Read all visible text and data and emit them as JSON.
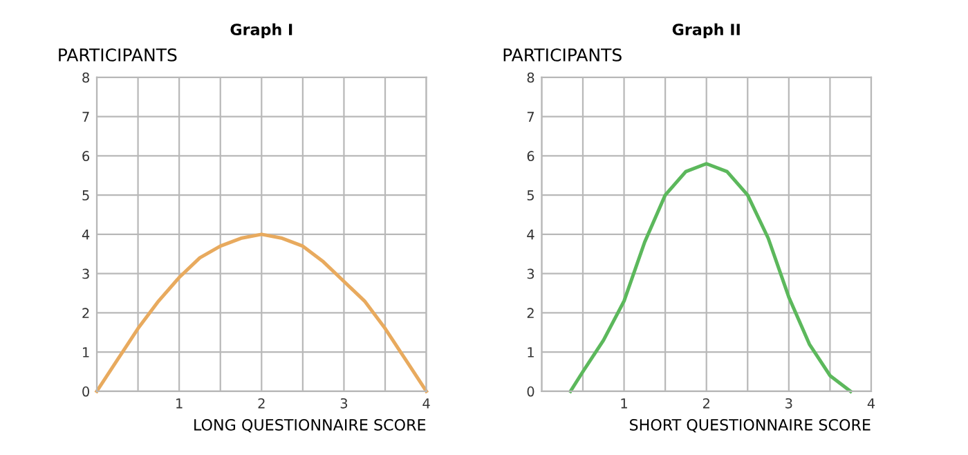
{
  "chart_data": [
    {
      "type": "line",
      "title": "Graph I",
      "xlabel": "LONG QUESTIONNAIRE SCORE",
      "ylabel": "PARTICIPANTS",
      "xlim": [
        0,
        4
      ],
      "ylim": [
        0,
        8
      ],
      "xticks": [
        {
          "value": 0,
          "label": null
        },
        {
          "value": 0.5,
          "label": null
        },
        1,
        {
          "value": 1.5,
          "label": null
        },
        2,
        {
          "value": 2.5,
          "label": null
        },
        3,
        {
          "value": 3.5,
          "label": null
        },
        4
      ],
      "yticks": [
        0,
        1,
        2,
        3,
        4,
        5,
        6,
        7,
        8
      ],
      "grid": true,
      "marker": "none",
      "line_style": "solid",
      "series": [
        {
          "color": "#e8aa5e",
          "x": [
            0,
            0.25,
            0.5,
            0.75,
            1,
            1.25,
            1.5,
            1.75,
            2,
            2.25,
            2.5,
            2.75,
            3,
            3.25,
            3.5,
            3.75,
            4
          ],
          "values": [
            0,
            0.8,
            1.6,
            2.3,
            2.9,
            3.4,
            3.7,
            3.9,
            4,
            3.9,
            3.7,
            3.3,
            2.8,
            2.3,
            1.6,
            0.8,
            0
          ]
        }
      ]
    },
    {
      "type": "line",
      "title": "Graph II",
      "xlabel": "SHORT QUESTIONNAIRE SCORE",
      "ylabel": "PARTICIPANTS",
      "xlim": [
        0,
        4
      ],
      "ylim": [
        0,
        8
      ],
      "xticks": [
        {
          "value": 0,
          "label": null
        },
        {
          "value": 0.5,
          "label": null
        },
        1,
        {
          "value": 1.5,
          "label": null
        },
        2,
        {
          "value": 2.5,
          "label": null
        },
        3,
        {
          "value": 3.5,
          "label": null
        },
        4
      ],
      "yticks": [
        0,
        1,
        2,
        3,
        4,
        5,
        6,
        7,
        8
      ],
      "grid": true,
      "marker": "none",
      "line_style": "solid",
      "series": [
        {
          "color": "#5cb85c",
          "x": [
            0.35,
            0.5,
            0.75,
            1,
            1.25,
            1.5,
            1.75,
            2,
            2.25,
            2.5,
            2.75,
            3,
            3.25,
            3.5,
            3.75
          ],
          "values": [
            0,
            0.5,
            1.3,
            2.3,
            3.8,
            5,
            5.6,
            5.8,
            5.6,
            5,
            3.9,
            2.4,
            1.2,
            0.4,
            0
          ]
        }
      ]
    }
  ]
}
